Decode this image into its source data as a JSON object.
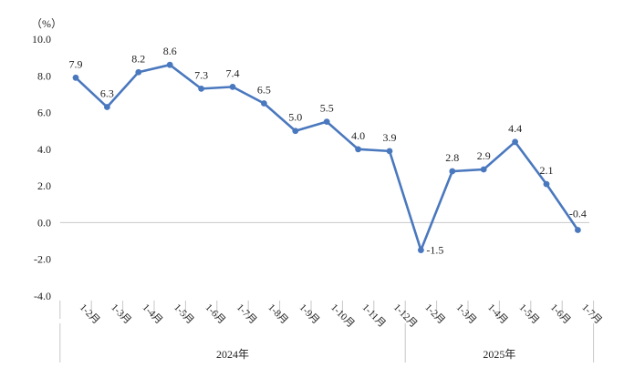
{
  "chart_data": {
    "type": "line",
    "unit_label": "（%）",
    "ylim": [
      -4.0,
      10.0
    ],
    "yticks": [
      -4.0,
      -2.0,
      0.0,
      2.0,
      4.0,
      6.0,
      8.0,
      10.0
    ],
    "ytick_labels": [
      "-4.0",
      "-2.0",
      "0.0",
      "2.0",
      "4.0",
      "6.0",
      "8.0",
      "10.0"
    ],
    "categories": [
      "1-2月",
      "1-3月",
      "1-4月",
      "1-5月",
      "1-6月",
      "1-7月",
      "1-8月",
      "1-9月",
      "1-10月",
      "1-11月",
      "1-12月",
      "1-2月",
      "1-3月",
      "1-4月",
      "1-5月",
      "1-6月",
      "1-7月"
    ],
    "groups": [
      {
        "label": "2024年",
        "count": 11
      },
      {
        "label": "2025年",
        "count": 6
      }
    ],
    "series": [
      {
        "name": "增速",
        "color": "#4a78be",
        "values": [
          7.9,
          6.3,
          8.2,
          8.6,
          7.3,
          7.4,
          6.5,
          5.0,
          5.5,
          4.0,
          3.9,
          -1.5,
          2.8,
          2.9,
          4.4,
          2.1,
          -0.4
        ],
        "labels": [
          "7.9",
          "6.3",
          "8.2",
          "8.6",
          "7.3",
          "7.4",
          "6.5",
          "5.0",
          "5.5",
          "4.0",
          "3.9",
          "-1.5",
          "2.8",
          "2.9",
          "4.4",
          "2.1",
          "-0.4"
        ]
      }
    ],
    "title": "",
    "xlabel": "",
    "ylabel": "",
    "grid": false
  }
}
